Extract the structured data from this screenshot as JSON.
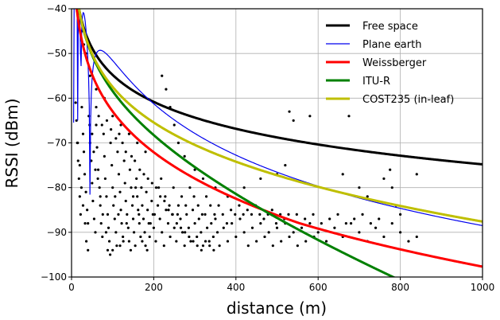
{
  "chart_data": {
    "type": "line",
    "xlabel": "distance (m)",
    "ylabel": "RSSI (dBm)",
    "xlim": [
      0,
      1000
    ],
    "ylim": [
      -100,
      -40
    ],
    "xticks": [
      0,
      200,
      400,
      600,
      800,
      1000
    ],
    "yticks": [
      -100,
      -90,
      -80,
      -70,
      -60,
      -50,
      -40
    ],
    "grid": true,
    "legend_position": "top-right",
    "series": [
      {
        "name": "Free space",
        "color": "#000000",
        "width": 3,
        "model": "free_space"
      },
      {
        "name": "Plane earth",
        "color": "#0000ee",
        "width": 1.2,
        "model": "plane_earth"
      },
      {
        "name": "Weissberger",
        "color": "#ff0000",
        "width": 3,
        "model": "weissberger"
      },
      {
        "name": "ITU-R",
        "color": "#008000",
        "width": 3,
        "model": "itu_r"
      },
      {
        "name": "COST235 (in-leaf)",
        "color": "#bfbf00",
        "width": 3,
        "model": "cost235"
      }
    ],
    "scatter": {
      "color": "#000000",
      "points": [
        [
          10,
          -61
        ],
        [
          12,
          -65
        ],
        [
          14,
          -70
        ],
        [
          16,
          -74
        ],
        [
          18,
          -78
        ],
        [
          20,
          -82
        ],
        [
          22,
          -86
        ],
        [
          25,
          -62
        ],
        [
          28,
          -68
        ],
        [
          30,
          -72
        ],
        [
          32,
          -77
        ],
        [
          35,
          -81
        ],
        [
          38,
          -85
        ],
        [
          40,
          -88
        ],
        [
          42,
          -64
        ],
        [
          45,
          -70
        ],
        [
          48,
          -74
        ],
        [
          50,
          -79
        ],
        [
          52,
          -83
        ],
        [
          55,
          -87
        ],
        [
          58,
          -90
        ],
        [
          60,
          -66
        ],
        [
          62,
          -71
        ],
        [
          65,
          -76
        ],
        [
          68,
          -80
        ],
        [
          70,
          -84
        ],
        [
          72,
          -88
        ],
        [
          75,
          -91
        ],
        [
          78,
          -68
        ],
        [
          80,
          -73
        ],
        [
          82,
          -78
        ],
        [
          85,
          -82
        ],
        [
          88,
          -86
        ],
        [
          90,
          -89
        ],
        [
          92,
          -92
        ],
        [
          95,
          -70
        ],
        [
          98,
          -75
        ],
        [
          100,
          -80
        ],
        [
          102,
          -84
        ],
        [
          105,
          -87
        ],
        [
          108,
          -90
        ],
        [
          110,
          -93
        ],
        [
          112,
          -72
        ],
        [
          115,
          -77
        ],
        [
          118,
          -81
        ],
        [
          120,
          -85
        ],
        [
          122,
          -88
        ],
        [
          125,
          -91
        ],
        [
          128,
          -74
        ],
        [
          130,
          -79
        ],
        [
          132,
          -83
        ],
        [
          135,
          -86
        ],
        [
          138,
          -89
        ],
        [
          140,
          -92
        ],
        [
          142,
          -76
        ],
        [
          145,
          -80
        ],
        [
          148,
          -84
        ],
        [
          150,
          -87
        ],
        [
          152,
          -90
        ],
        [
          155,
          -93
        ],
        [
          158,
          -78
        ],
        [
          160,
          -82
        ],
        [
          162,
          -85
        ],
        [
          165,
          -88
        ],
        [
          168,
          -91
        ],
        [
          170,
          -80
        ],
        [
          172,
          -84
        ],
        [
          175,
          -87
        ],
        [
          178,
          -90
        ],
        [
          180,
          -93
        ],
        [
          182,
          -81
        ],
        [
          185,
          -85
        ],
        [
          188,
          -88
        ],
        [
          190,
          -91
        ],
        [
          195,
          -83
        ],
        [
          198,
          -86
        ],
        [
          200,
          -89
        ],
        [
          205,
          -92
        ],
        [
          210,
          -84
        ],
        [
          215,
          -87
        ],
        [
          220,
          -90
        ],
        [
          225,
          -93
        ],
        [
          230,
          -85
        ],
        [
          235,
          -88
        ],
        [
          240,
          -91
        ],
        [
          245,
          -86
        ],
        [
          250,
          -89
        ],
        [
          255,
          -92
        ],
        [
          260,
          -84
        ],
        [
          265,
          -87
        ],
        [
          270,
          -90
        ],
        [
          275,
          -93
        ],
        [
          280,
          -86
        ],
        [
          285,
          -89
        ],
        [
          290,
          -92
        ],
        [
          295,
          -85
        ],
        [
          300,
          -88
        ],
        [
          305,
          -91
        ],
        [
          310,
          -87
        ],
        [
          315,
          -90
        ],
        [
          320,
          -93
        ],
        [
          325,
          -86
        ],
        [
          330,
          -89
        ],
        [
          335,
          -92
        ],
        [
          340,
          -88
        ],
        [
          345,
          -91
        ],
        [
          350,
          -87
        ],
        [
          355,
          -90
        ],
        [
          360,
          -93
        ],
        [
          370,
          -89
        ],
        [
          380,
          -92
        ],
        [
          390,
          -88
        ],
        [
          400,
          -91
        ],
        [
          410,
          -87
        ],
        [
          420,
          -90
        ],
        [
          430,
          -93
        ],
        [
          440,
          -89
        ],
        [
          450,
          -92
        ],
        [
          460,
          -88
        ],
        [
          470,
          -91
        ],
        [
          480,
          -90
        ],
        [
          490,
          -93
        ],
        [
          500,
          -89
        ],
        [
          510,
          -92
        ],
        [
          520,
          -88
        ],
        [
          530,
          -91
        ],
        [
          540,
          -90
        ],
        [
          550,
          -93
        ],
        [
          560,
          -89
        ],
        [
          570,
          -92
        ],
        [
          580,
          -88
        ],
        [
          590,
          -91
        ],
        [
          600,
          -90
        ],
        [
          620,
          -92
        ],
        [
          640,
          -89
        ],
        [
          660,
          -91
        ],
        [
          680,
          -88
        ],
        [
          700,
          -90
        ],
        [
          720,
          -92
        ],
        [
          740,
          -89
        ],
        [
          760,
          -91
        ],
        [
          780,
          -88
        ],
        [
          800,
          -90
        ],
        [
          820,
          -92
        ],
        [
          840,
          -91
        ],
        [
          25,
          -45
        ],
        [
          30,
          -48
        ],
        [
          35,
          -50
        ],
        [
          45,
          -55
        ],
        [
          60,
          -58
        ],
        [
          80,
          -60
        ],
        [
          100,
          -64
        ],
        [
          120,
          -66
        ],
        [
          140,
          -68
        ],
        [
          160,
          -70
        ],
        [
          180,
          -72
        ],
        [
          220,
          -55
        ],
        [
          230,
          -58
        ],
        [
          240,
          -62
        ],
        [
          250,
          -66
        ],
        [
          260,
          -70
        ],
        [
          275,
          -73
        ],
        [
          300,
          -76
        ],
        [
          320,
          -78
        ],
        [
          350,
          -80
        ],
        [
          380,
          -82
        ],
        [
          420,
          -80
        ],
        [
          460,
          -78
        ],
        [
          500,
          -77
        ],
        [
          520,
          -75
        ],
        [
          530,
          -63
        ],
        [
          540,
          -65
        ],
        [
          580,
          -64
        ],
        [
          660,
          -77
        ],
        [
          675,
          -64
        ],
        [
          700,
          -80
        ],
        [
          720,
          -82
        ],
        [
          760,
          -78
        ],
        [
          775,
          -76
        ],
        [
          780,
          -80
        ],
        [
          790,
          -84
        ],
        [
          800,
          -86
        ],
        [
          840,
          -77
        ],
        [
          15,
          -70
        ],
        [
          20,
          -75
        ],
        [
          24,
          -80
        ],
        [
          28,
          -84
        ],
        [
          33,
          -88
        ],
        [
          36,
          -92
        ],
        [
          40,
          -94
        ],
        [
          44,
          -66
        ],
        [
          50,
          -68
        ],
        [
          54,
          -72
        ],
        [
          58,
          -76
        ],
        [
          64,
          -78
        ],
        [
          70,
          -82
        ],
        [
          76,
          -86
        ],
        [
          84,
          -90
        ],
        [
          88,
          -94
        ],
        [
          94,
          -95
        ],
        [
          100,
          -94
        ],
        [
          106,
          -82
        ],
        [
          114,
          -86
        ],
        [
          118,
          -93
        ],
        [
          126,
          -92
        ],
        [
          134,
          -88
        ],
        [
          144,
          -94
        ],
        [
          150,
          -82
        ],
        [
          156,
          -80
        ],
        [
          164,
          -86
        ],
        [
          172,
          -92
        ],
        [
          184,
          -94
        ],
        [
          192,
          -88
        ],
        [
          202,
          -86
        ],
        [
          212,
          -80
        ],
        [
          218,
          -78
        ],
        [
          228,
          -82
        ],
        [
          238,
          -84
        ],
        [
          248,
          -80
        ],
        [
          258,
          -86
        ],
        [
          268,
          -82
        ],
        [
          278,
          -84
        ],
        [
          288,
          -80
        ],
        [
          298,
          -82
        ],
        [
          308,
          -84
        ],
        [
          318,
          -86
        ],
        [
          328,
          -82
        ],
        [
          338,
          -84
        ],
        [
          348,
          -86
        ],
        [
          358,
          -84
        ],
        [
          368,
          -86
        ],
        [
          378,
          -88
        ],
        [
          388,
          -85
        ],
        [
          398,
          -86
        ],
        [
          408,
          -84
        ],
        [
          418,
          -86
        ],
        [
          428,
          -85
        ],
        [
          438,
          -86
        ],
        [
          448,
          -84
        ],
        [
          458,
          -86
        ],
        [
          468,
          -87
        ],
        [
          478,
          -86
        ],
        [
          488,
          -85
        ],
        [
          498,
          -88
        ],
        [
          508,
          -86
        ],
        [
          518,
          -87
        ],
        [
          528,
          -86
        ],
        [
          548,
          -86
        ],
        [
          568,
          -87
        ],
        [
          588,
          -86
        ],
        [
          608,
          -88
        ],
        [
          628,
          -87
        ],
        [
          648,
          -86
        ],
        [
          668,
          -88
        ],
        [
          688,
          -87
        ],
        [
          708,
          -86
        ],
        [
          728,
          -88
        ],
        [
          748,
          -87
        ],
        [
          60,
          -62
        ],
        [
          66,
          -64
        ],
        [
          74,
          -66
        ],
        [
          86,
          -65
        ],
        [
          96,
          -67
        ],
        [
          108,
          -69
        ],
        [
          116,
          -68
        ],
        [
          124,
          -70
        ],
        [
          132,
          -72
        ],
        [
          146,
          -73
        ],
        [
          154,
          -74
        ],
        [
          166,
          -76
        ],
        [
          176,
          -77
        ],
        [
          186,
          -78
        ],
        [
          196,
          -79
        ],
        [
          206,
          -80
        ],
        [
          216,
          -82
        ],
        [
          226,
          -83
        ],
        [
          236,
          -85
        ],
        [
          246,
          -86
        ],
        [
          256,
          -88
        ],
        [
          266,
          -89
        ],
        [
          276,
          -90
        ],
        [
          286,
          -91
        ],
        [
          296,
          -92
        ],
        [
          306,
          -93
        ],
        [
          316,
          -94
        ],
        [
          326,
          -92
        ],
        [
          336,
          -93
        ],
        [
          346,
          -94
        ]
      ]
    }
  }
}
